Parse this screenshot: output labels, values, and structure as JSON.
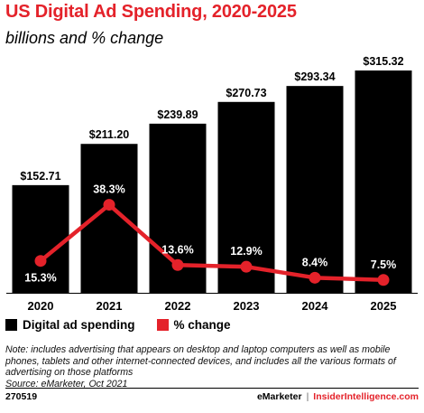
{
  "chart_data": {
    "type": "bar",
    "title": "US Digital Ad Spending, 2020-2025",
    "subtitle": "billions and % change",
    "categories": [
      "2020",
      "2021",
      "2022",
      "2023",
      "2024",
      "2025"
    ],
    "series": [
      {
        "name": "Digital ad spending",
        "type": "bar",
        "color": "#000000",
        "values": [
          152.71,
          211.2,
          239.89,
          270.73,
          293.34,
          315.32
        ],
        "labels": [
          "$152.71",
          "$211.20",
          "$239.89",
          "$270.73",
          "$293.34",
          "$315.32"
        ]
      },
      {
        "name": "% change",
        "type": "line",
        "color": "#e4222a",
        "values": [
          15.3,
          38.3,
          13.6,
          12.9,
          8.4,
          7.5
        ],
        "labels": [
          "15.3%",
          "38.3%",
          "13.6%",
          "12.9%",
          "8.4%",
          "7.5%"
        ]
      }
    ],
    "legend_position": "bottom-left",
    "grid": false
  },
  "note": "Note: includes advertising that appears on desktop and laptop computers as well as mobile phones, tablets and other internet-connected devices, and includes all the various formats of advertising on those platforms",
  "source": "Source: eMarketer, Oct 2021",
  "footer": {
    "id": "270519",
    "brand": "eMarketer",
    "separator": "|",
    "site": "InsiderIntelligence.com"
  }
}
